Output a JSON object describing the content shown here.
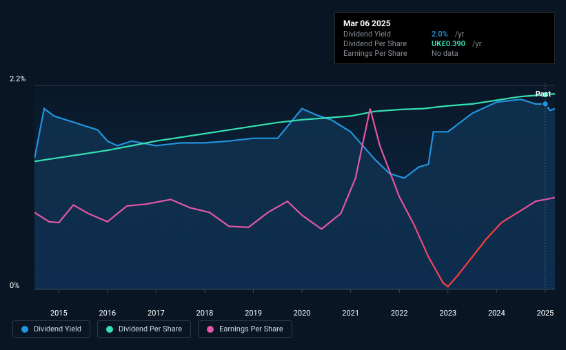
{
  "chart": {
    "type": "line-area",
    "background_color": "#0a1523",
    "plot_bg_gradient": {
      "top": "#091828",
      "bottom": "#0d2a4a"
    },
    "axis_color": "#3b4a5b",
    "xlim": [
      2014.5,
      2025.2
    ],
    "ylim": [
      0,
      2.2
    ],
    "x_ticks": [
      2015,
      2016,
      2017,
      2018,
      2019,
      2020,
      2021,
      2022,
      2023,
      2024,
      2025
    ],
    "y_ticks": [
      {
        "value": 0,
        "label": "0%"
      },
      {
        "value": 2.2,
        "label": "2.2%"
      }
    ],
    "series": {
      "dividend_yield": {
        "label": "Dividend Yield",
        "color": "#2394df",
        "fill_opacity": 0.08,
        "line_width": 2.2,
        "data": [
          [
            2014.5,
            1.41
          ],
          [
            2014.7,
            1.95
          ],
          [
            2014.9,
            1.87
          ],
          [
            2015.2,
            1.82
          ],
          [
            2015.5,
            1.77
          ],
          [
            2015.8,
            1.72
          ],
          [
            2016.0,
            1.6
          ],
          [
            2016.2,
            1.55
          ],
          [
            2016.5,
            1.6
          ],
          [
            2017.0,
            1.55
          ],
          [
            2017.5,
            1.58
          ],
          [
            2018.0,
            1.58
          ],
          [
            2018.5,
            1.6
          ],
          [
            2019.0,
            1.63
          ],
          [
            2019.5,
            1.63
          ],
          [
            2020.0,
            1.95
          ],
          [
            2020.3,
            1.88
          ],
          [
            2020.6,
            1.83
          ],
          [
            2021.0,
            1.7
          ],
          [
            2021.5,
            1.4
          ],
          [
            2021.8,
            1.25
          ],
          [
            2022.1,
            1.2
          ],
          [
            2022.4,
            1.32
          ],
          [
            2022.6,
            1.35
          ],
          [
            2022.7,
            1.7
          ],
          [
            2023.0,
            1.7
          ],
          [
            2023.5,
            1.9
          ],
          [
            2024.0,
            2.02
          ],
          [
            2024.5,
            2.05
          ],
          [
            2024.8,
            2.0
          ],
          [
            2025.0,
            2.0
          ],
          [
            2025.1,
            1.93
          ],
          [
            2025.2,
            1.95
          ]
        ]
      },
      "dividend_per_share": {
        "label": "Dividend Per Share",
        "color": "#36e0b1",
        "line_width": 2.2,
        "data": [
          [
            2014.5,
            1.38
          ],
          [
            2015.0,
            1.42
          ],
          [
            2015.5,
            1.46
          ],
          [
            2016.0,
            1.5
          ],
          [
            2016.5,
            1.55
          ],
          [
            2017.0,
            1.6
          ],
          [
            2017.5,
            1.64
          ],
          [
            2018.0,
            1.68
          ],
          [
            2018.5,
            1.72
          ],
          [
            2019.0,
            1.76
          ],
          [
            2019.5,
            1.8
          ],
          [
            2020.0,
            1.83
          ],
          [
            2020.5,
            1.85
          ],
          [
            2021.0,
            1.87
          ],
          [
            2021.5,
            1.92
          ],
          [
            2022.0,
            1.94
          ],
          [
            2022.5,
            1.95
          ],
          [
            2023.0,
            1.98
          ],
          [
            2023.5,
            2.0
          ],
          [
            2024.0,
            2.04
          ],
          [
            2024.5,
            2.08
          ],
          [
            2025.0,
            2.1
          ],
          [
            2025.2,
            2.11
          ]
        ]
      },
      "earnings_per_share": {
        "label": "Earnings Per Share",
        "color_start": "#e556a7",
        "color_end": "#ff3b3b",
        "line_width": 2.2,
        "data": [
          [
            2014.5,
            0.83
          ],
          [
            2014.8,
            0.73
          ],
          [
            2015.0,
            0.72
          ],
          [
            2015.3,
            0.91
          ],
          [
            2015.6,
            0.82
          ],
          [
            2016.0,
            0.73
          ],
          [
            2016.4,
            0.9
          ],
          [
            2016.8,
            0.92
          ],
          [
            2017.3,
            0.97
          ],
          [
            2017.7,
            0.88
          ],
          [
            2018.1,
            0.83
          ],
          [
            2018.5,
            0.68
          ],
          [
            2018.9,
            0.67
          ],
          [
            2019.3,
            0.83
          ],
          [
            2019.7,
            0.95
          ],
          [
            2020.0,
            0.8
          ],
          [
            2020.4,
            0.65
          ],
          [
            2020.8,
            0.82
          ],
          [
            2021.1,
            1.2
          ],
          [
            2021.4,
            1.95
          ],
          [
            2021.6,
            1.55
          ],
          [
            2022.0,
            1.0
          ],
          [
            2022.3,
            0.7
          ],
          [
            2022.6,
            0.35
          ],
          [
            2022.9,
            0.07
          ],
          [
            2023.0,
            0.03
          ],
          [
            2023.2,
            0.15
          ],
          [
            2023.5,
            0.35
          ],
          [
            2023.8,
            0.55
          ],
          [
            2024.1,
            0.72
          ],
          [
            2024.5,
            0.85
          ],
          [
            2024.8,
            0.95
          ],
          [
            2025.2,
            0.99
          ]
        ]
      }
    },
    "marker_x": 2025.0,
    "past_label": "Past"
  },
  "tooltip": {
    "date": "Mar 06 2025",
    "rows": [
      {
        "label": "Dividend Yield",
        "value": "2.0%",
        "value_color": "#2394df",
        "unit": "/yr"
      },
      {
        "label": "Dividend Per Share",
        "value": "UK£0.390",
        "value_color": "#36e0b1",
        "unit": "/yr"
      },
      {
        "label": "Earnings Per Share",
        "value": null,
        "no_data_text": "No data"
      }
    ]
  },
  "legend": [
    {
      "label": "Dividend Yield",
      "color": "#2394df"
    },
    {
      "label": "Dividend Per Share",
      "color": "#36e0b1"
    },
    {
      "label": "Earnings Per Share",
      "color": "#e556a7"
    }
  ]
}
